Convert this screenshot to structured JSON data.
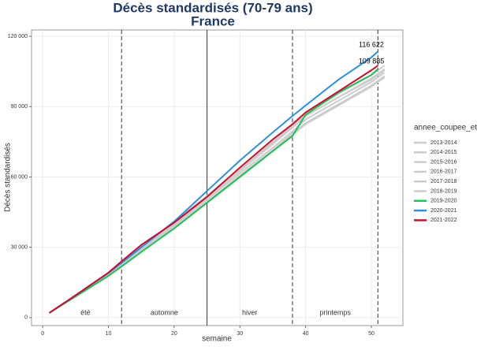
{
  "chart_data": {
    "type": "line",
    "title": "Décès standardisés (70-79 ans)",
    "subtitle": "France",
    "xlabel": "semaine",
    "ylabel": "Décès standardisés",
    "legend_title": "annee_coupee_ete",
    "x": [
      1,
      5,
      10,
      12,
      15,
      20,
      25,
      30,
      35,
      38,
      40,
      45,
      50,
      51,
      52
    ],
    "xlim": [
      -1.7,
      54.8
    ],
    "xticks": [
      0,
      10,
      20,
      30,
      40,
      50
    ],
    "ylim": [
      -3400,
      122700
    ],
    "yticks": [
      0,
      {
        "value": 30000,
        "label": "30 000"
      },
      {
        "value": 60000,
        "label": "60 000"
      },
      {
        "value": 90000,
        "label": "90 000"
      },
      {
        "value": 120000,
        "label": "120 000"
      }
    ],
    "grid": true,
    "vlines": [
      {
        "x": 12,
        "style": "dashed"
      },
      {
        "x": 25,
        "style": "solid"
      },
      {
        "x": 38,
        "style": "dashed"
      },
      {
        "x": 51,
        "style": "dashed"
      }
    ],
    "seasons": [
      "été",
      "automne",
      "hiver",
      "printemps"
    ],
    "annotations": [
      "116 622",
      "109 885"
    ],
    "series": [
      {
        "name": "2013-2014",
        "color": "#cccccc",
        "values": [
          2000,
          9200,
          18000,
          22000,
          28500,
          39000,
          49500,
          60500,
          71500,
          78500,
          83000,
          91000,
          99000,
          101000,
          103000
        ]
      },
      {
        "name": "2014-2015",
        "color": "#cccccc",
        "values": [
          2000,
          9300,
          18200,
          22300,
          29000,
          40000,
          51000,
          62500,
          74000,
          81000,
          86000,
          94000,
          101500,
          103500,
          105500
        ]
      },
      {
        "name": "2015-2016",
        "color": "#cccccc",
        "values": [
          2000,
          9100,
          17800,
          21800,
          28300,
          38800,
          49000,
          60000,
          71000,
          78000,
          82500,
          90500,
          98500,
          100500,
          102500
        ]
      },
      {
        "name": "2016-2017",
        "color": "#cccccc",
        "values": [
          2000,
          9200,
          18100,
          22200,
          29200,
          40500,
          51500,
          63000,
          74500,
          81500,
          86000,
          94000,
          102000,
          104000,
          106000
        ]
      },
      {
        "name": "2017-2018",
        "color": "#cccccc",
        "values": [
          2000,
          9300,
          18300,
          22400,
          29500,
          40800,
          52000,
          63500,
          75000,
          82000,
          87000,
          95500,
          103500,
          105500,
          107500
        ]
      },
      {
        "name": "2018-2019",
        "color": "#cccccc",
        "values": [
          2000,
          9200,
          18000,
          22100,
          28800,
          39500,
          50500,
          61500,
          72500,
          79500,
          84500,
          92500,
          100500,
          102500,
          104500
        ]
      },
      {
        "name": "2019-2020",
        "color": "#1fbf55",
        "values": [
          2000,
          9000,
          17800,
          21800,
          28000,
          38000,
          49000,
          60000,
          71000,
          77500,
          86500,
          96000,
          103500,
          106000,
          null
        ]
      },
      {
        "name": "2020-2021",
        "color": "#2d8fe0",
        "values": [
          2000,
          9500,
          19000,
          23300,
          30000,
          41000,
          54000,
          67000,
          79000,
          86000,
          90500,
          101500,
          111000,
          113500,
          null
        ]
      },
      {
        "name": "2021-2022",
        "color": "#c8102e",
        "values": [
          2000,
          9500,
          19200,
          24000,
          31000,
          40500,
          51500,
          64000,
          76000,
          82500,
          87500,
          96500,
          105500,
          107500,
          null
        ]
      }
    ]
  }
}
